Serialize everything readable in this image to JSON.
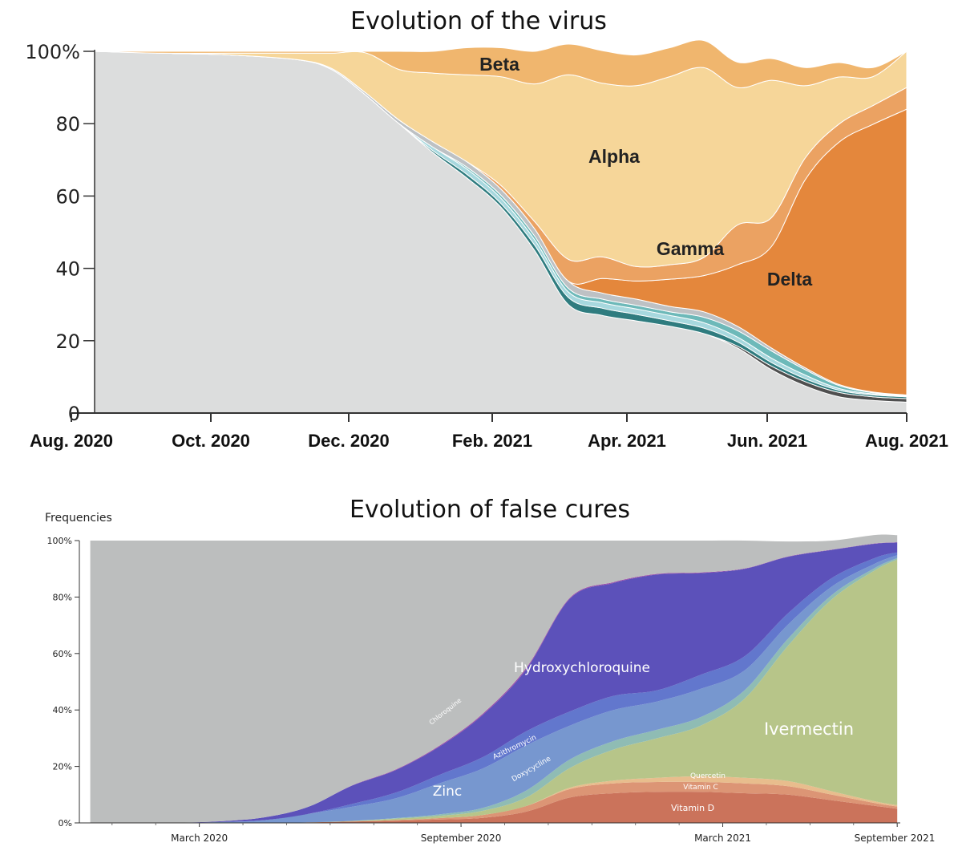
{
  "chart_data": [
    {
      "type": "area",
      "stacked": true,
      "normalized": true,
      "title": "Evolution of the virus",
      "xlabel": "",
      "ylabel": "",
      "yticks": [
        "0",
        "20",
        "40",
        "60",
        "80",
        "100%"
      ],
      "ylim": [
        0,
        100
      ],
      "xlim": [
        0,
        12
      ],
      "xtick_labels": [
        "Aug. 2020",
        "Oct. 2020",
        "Dec. 2020",
        "Feb. 2021",
        "Apr. 2021",
        "Jun. 2021",
        "Aug. 2021"
      ],
      "x": [
        0,
        1,
        2,
        3,
        3.5,
        4,
        4.5,
        5,
        5.5,
        6,
        6.5,
        7,
        7.5,
        8,
        8.5,
        9,
        9.5,
        10,
        10.5,
        11,
        11.5,
        12
      ],
      "series": [
        {
          "name": "",
          "color": "#dcdddd",
          "values": [
            100,
            99.5,
            99,
            97.7,
            95,
            88,
            80,
            72,
            65,
            57,
            45,
            30,
            27,
            25.5,
            24,
            22,
            18,
            12,
            7.5,
            4.5,
            3.5,
            3
          ]
        },
        {
          "name": "",
          "color": "#4f4f4f",
          "values": [
            0,
            0,
            0,
            0,
            0,
            0,
            0,
            0,
            0,
            0,
            0,
            0,
            0,
            0,
            0,
            0,
            0.5,
            1,
            1.2,
            1.2,
            1,
            1
          ]
        },
        {
          "name": "",
          "color": "#2f7c7f",
          "values": [
            0,
            0,
            0,
            0,
            0,
            0,
            0,
            0.5,
            1,
            1,
            1.5,
            2,
            2,
            1.8,
            1.5,
            1.5,
            1.2,
            1,
            0.8,
            0.6,
            0.5,
            0.5
          ]
        },
        {
          "name": "",
          "color": "#a7d8de",
          "values": [
            0,
            0,
            0,
            0,
            0,
            0,
            0,
            1,
            1.5,
            1.5,
            1.5,
            1.5,
            1.5,
            1.5,
            1.5,
            1.5,
            1.3,
            1.2,
            1,
            0.5,
            0.3,
            0.2
          ]
        },
        {
          "name": "",
          "color": "#6db9b9",
          "values": [
            0,
            0,
            0,
            0,
            0,
            0,
            0,
            0,
            0.5,
            0.8,
            1,
            1,
            1,
            1,
            1,
            1.5,
            1.8,
            2,
            1.5,
            0.8,
            0.3,
            0.2
          ]
        },
        {
          "name": "",
          "color": "#bdc1c4",
          "values": [
            0,
            0,
            0,
            0,
            0.3,
            0.6,
            1,
            1.5,
            1.5,
            1.7,
            2,
            2,
            1.7,
            1.7,
            1.5,
            1.5,
            1.2,
            0.8,
            0.5,
            0.3,
            0.2,
            0.1
          ]
        },
        {
          "name": "Delta",
          "color": "#e4873c",
          "values": [
            0,
            0,
            0,
            0,
            0,
            0,
            0,
            0,
            0,
            0,
            0,
            0,
            4,
            5,
            7.5,
            10,
            17,
            28,
            52,
            67,
            74,
            79
          ]
        },
        {
          "name": "Gamma",
          "color": "#eba262",
          "values": [
            0,
            0,
            0,
            0,
            0,
            0,
            0,
            0,
            0,
            1,
            2,
            6,
            6,
            4,
            4,
            5,
            11,
            8,
            6,
            5,
            5.2,
            6
          ]
        },
        {
          "name": "Alpha",
          "color": "#f6d699",
          "values": [
            0,
            0,
            0.5,
            1.8,
            4.2,
            11,
            14,
            19,
            24,
            30,
            38,
            51,
            48,
            50,
            52,
            52.5,
            38,
            38,
            20,
            13,
            8,
            10
          ]
        },
        {
          "name": "Beta",
          "color": "#f0b66e",
          "values": [
            0,
            0.5,
            0.5,
            0.5,
            0.5,
            0.4,
            5,
            6,
            7.5,
            8,
            9,
            8.5,
            9,
            8.5,
            8,
            7.5,
            7,
            6,
            5,
            4,
            2.5,
            0
          ]
        }
      ]
    },
    {
      "type": "area",
      "stacked": true,
      "normalized": true,
      "title": "Evolution of false cures",
      "ylabel": "Frequencies",
      "yticks": [
        "0%",
        "20%",
        "40%",
        "60%",
        "80%",
        "100%"
      ],
      "ylim": [
        0,
        100
      ],
      "xlim": [
        -0.25,
        18.57
      ],
      "xtick_labels": [
        "March 2020",
        "September 2020",
        "March 2021",
        "September 2021"
      ],
      "xtick_positions": [
        2.5,
        8.5,
        14.5,
        18.5
      ],
      "x": [
        0,
        1,
        2,
        3,
        4,
        5,
        6,
        7,
        8,
        9,
        10,
        11,
        12,
        13,
        14,
        15,
        16,
        17,
        18,
        18.5
      ],
      "series": [
        {
          "name": "Vitamin D",
          "color": "#cb735b",
          "values": [
            0,
            0,
            0,
            0,
            0,
            0.2,
            0.5,
            0.8,
            1.2,
            1.8,
            4,
            9,
            10.5,
            11,
            11,
            10.5,
            10,
            8,
            6,
            5
          ]
        },
        {
          "name": "Vitamin C",
          "color": "#dc9575",
          "values": [
            0,
            0,
            0,
            0,
            0,
            0,
            0,
            0.2,
            0.5,
            1,
            2,
            3,
            3.5,
            3.5,
            3.5,
            3.5,
            3,
            2,
            1,
            0.8
          ]
        },
        {
          "name": "Quercetin",
          "color": "#e8bd8d",
          "values": [
            0,
            0,
            0,
            0,
            0,
            0,
            0,
            0,
            0,
            0,
            0,
            0.5,
            1,
            1.5,
            2,
            2,
            1.8,
            1.2,
            0.6,
            0.5
          ]
        },
        {
          "name": "Ivermectin",
          "color": "#b7c589",
          "values": [
            0,
            0,
            0,
            0,
            0,
            0,
            0.2,
            0.5,
            0.8,
            1.5,
            3,
            7,
            11,
            14,
            18,
            28,
            48,
            68,
            82,
            87
          ]
        },
        {
          "name": "Doxycycline",
          "color": "#8fbcb4",
          "values": [
            0,
            0,
            0,
            0,
            0,
            0,
            0,
            0.2,
            0.5,
            1,
            2.5,
            3,
            3,
            3,
            3,
            3,
            2.5,
            1.5,
            0.8,
            0.5
          ]
        },
        {
          "name": "Zinc",
          "color": "#7797cf",
          "values": [
            0,
            0,
            0.1,
            0.3,
            1,
            3,
            5,
            7,
            11,
            14,
            16,
            12,
            11,
            10,
            10,
            7,
            5,
            3,
            1.5,
            1
          ]
        },
        {
          "name": "Azithromycin",
          "color": "#6277cd",
          "values": [
            0,
            0,
            0,
            0,
            0,
            0,
            1,
            2,
            3,
            4,
            5,
            5,
            5,
            4,
            5,
            5,
            4,
            3,
            2,
            1
          ]
        },
        {
          "name": "Hydroxychloroquine",
          "color": "#5c51ba",
          "values": [
            0,
            0,
            0,
            0.3,
            1,
            2.5,
            6.5,
            8,
            10,
            15,
            22,
            40,
            40,
            41,
            36,
            31,
            20,
            10,
            5,
            3.5
          ]
        },
        {
          "name": "Chloroquine",
          "color": "#9c4ea8",
          "values": [
            0,
            0,
            0,
            0,
            0,
            0,
            0.1,
            0.2,
            0.3,
            0.4,
            0.5,
            0.3,
            0.3,
            0.2,
            0.2,
            0.1,
            0.1,
            0.1,
            0.1,
            0.1
          ]
        },
        {
          "name": "",
          "color": "#bcbebe",
          "values": [
            100,
            100,
            99.9,
            99.4,
            98,
            94.3,
            86.7,
            81.1,
            72.7,
            61.3,
            45,
            20.2,
            14.7,
            11.8,
            11.3,
            9.9,
            5.3,
            3.2,
            3,
            2.5
          ]
        }
      ]
    }
  ]
}
